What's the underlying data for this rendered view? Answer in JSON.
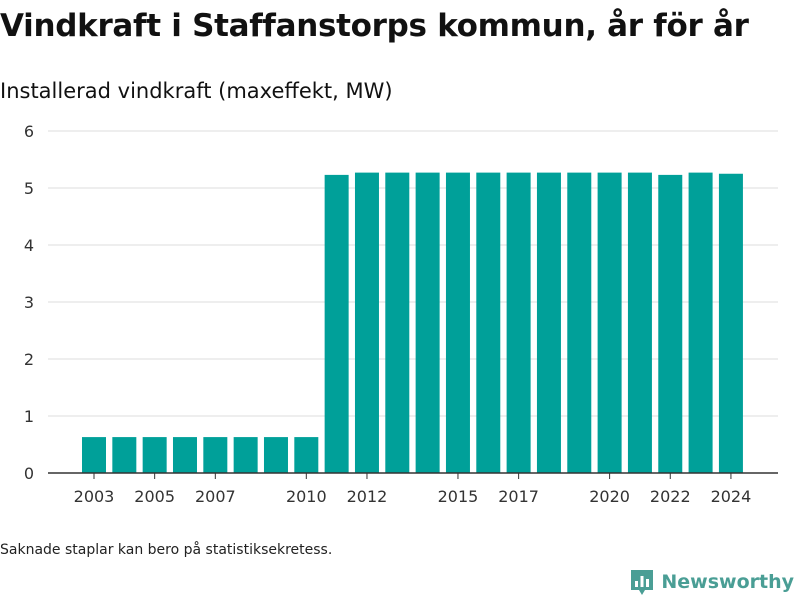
{
  "header": {
    "title": "Vindkraft i Staffanstorps kommun, år för år",
    "subtitle": "Installerad vindkraft (maxeffekt, MW)"
  },
  "footer": {
    "note": "Saknade staplar kan bero på statistiksekretess.",
    "brand": "Newsworthy",
    "brand_icon": "newsworthy-logo-icon"
  },
  "colors": {
    "bar": "#00a099",
    "grid": "#dddddd",
    "axis": "#333333",
    "brand": "#4a9e95"
  },
  "chart_data": {
    "type": "bar",
    "title": "Vindkraft i Staffanstorps kommun, år för år",
    "ylabel": "Installerad vindkraft (maxeffekt, MW)",
    "xlabel": "",
    "categories": [
      "2003",
      "2004",
      "2005",
      "2006",
      "2007",
      "2008",
      "2009",
      "2010",
      "2011",
      "2012",
      "2013",
      "2014",
      "2015",
      "2016",
      "2017",
      "2018",
      "2019",
      "2020",
      "2021",
      "2022",
      "2023",
      "2024"
    ],
    "values": [
      0.63,
      0.63,
      0.63,
      0.63,
      0.63,
      0.63,
      0.63,
      0.63,
      5.23,
      5.27,
      5.27,
      5.27,
      5.27,
      5.27,
      5.27,
      5.27,
      5.27,
      5.27,
      5.27,
      5.23,
      5.27,
      5.25
    ],
    "x_tick_labels": [
      "2003",
      "2005",
      "2007",
      "2010",
      "2012",
      "2015",
      "2017",
      "2020",
      "2022",
      "2024"
    ],
    "y_ticks": [
      0,
      1,
      2,
      3,
      4,
      5,
      6
    ],
    "ylim": [
      0,
      6
    ],
    "grid": true,
    "legend": "none"
  }
}
